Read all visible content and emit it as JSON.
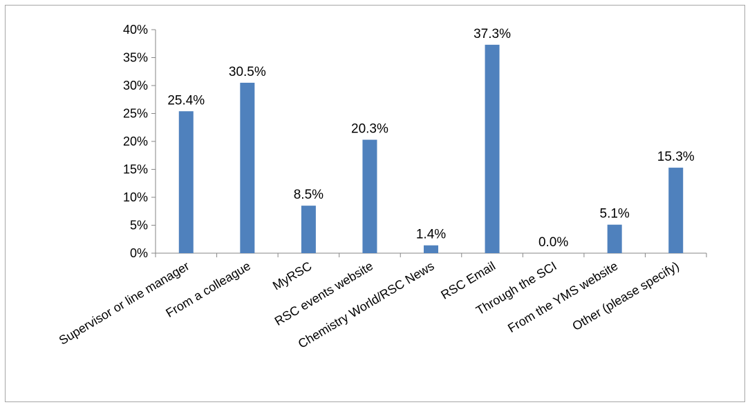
{
  "chart_data": {
    "type": "bar",
    "categories": [
      "Supervisor or line manager",
      "From a colleague",
      "MyRSC",
      "RSC events website",
      "Chemistry World/RSC News",
      "RSC Email",
      "Through the SCI",
      "From the YMS website",
      "Other (please specify)"
    ],
    "values": [
      25.4,
      30.5,
      8.5,
      20.3,
      1.4,
      37.3,
      0.0,
      5.1,
      15.3
    ],
    "data_labels": [
      "25.4%",
      "30.5%",
      "8.5%",
      "20.3%",
      "1.4%",
      "37.3%",
      "0.0%",
      "5.1%",
      "15.3%"
    ],
    "yticks": [
      0,
      5,
      10,
      15,
      20,
      25,
      30,
      35,
      40
    ],
    "ytick_labels": [
      "0%",
      "5%",
      "10%",
      "15%",
      "20%",
      "25%",
      "30%",
      "35%",
      "40%"
    ],
    "ylim": [
      0,
      40
    ],
    "title": "",
    "xlabel": "",
    "ylabel": "",
    "grid": false,
    "legend": "none",
    "bar_color": "#4f81bd"
  }
}
